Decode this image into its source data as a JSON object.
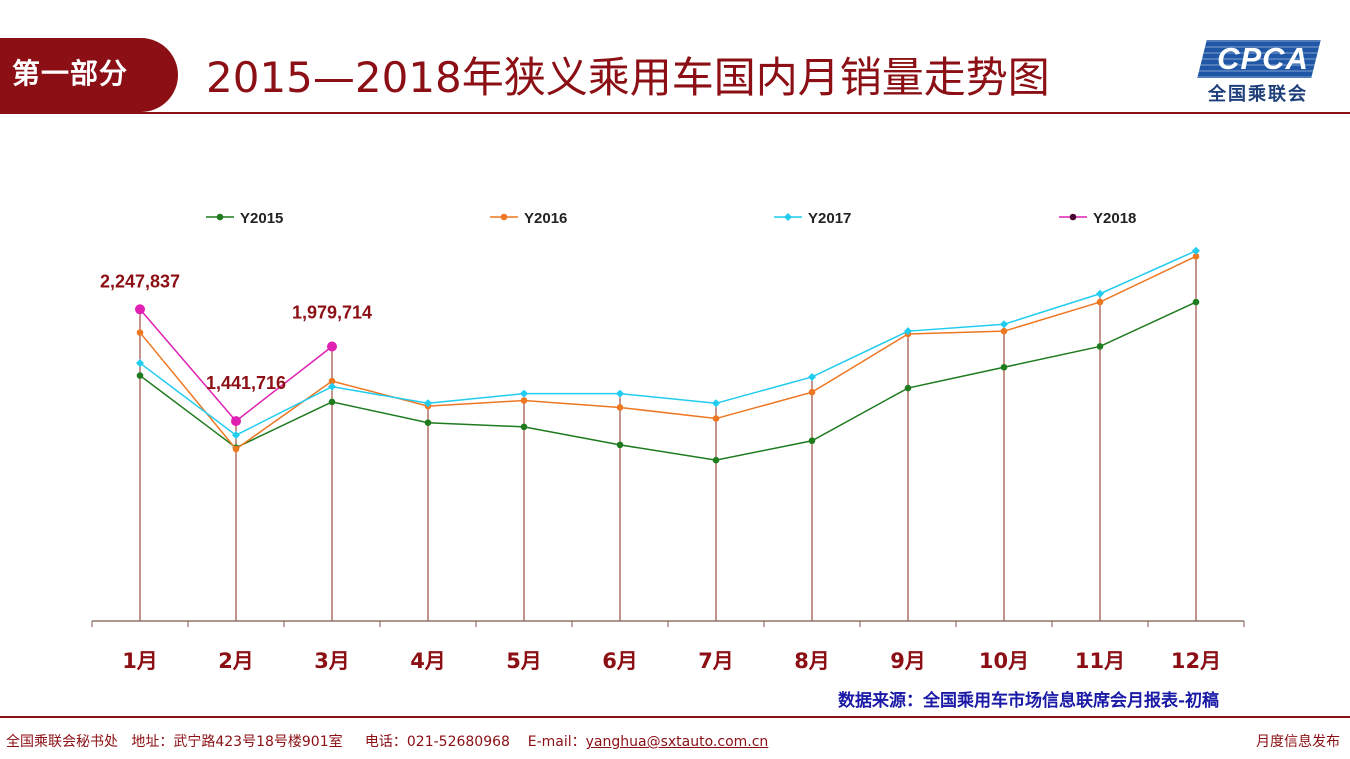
{
  "header": {
    "section_label": "第一部分",
    "title": "2015—2018年狭义乘用车国内月销量走势图",
    "logo_text": "CPCA",
    "logo_subtext": "全国乘联会"
  },
  "chart_data": {
    "type": "line",
    "categories": [
      "1月",
      "2月",
      "3月",
      "4月",
      "5月",
      "6月",
      "7月",
      "8月",
      "9月",
      "10月",
      "11月",
      "12月"
    ],
    "series": [
      {
        "name": "Y2015",
        "color": "#1e7b1e",
        "marker": "circle",
        "values": [
          1770000,
          1250000,
          1580000,
          1430000,
          1400000,
          1270000,
          1160000,
          1300000,
          1680000,
          1830000,
          1980000,
          2300000
        ]
      },
      {
        "name": "Y2016",
        "color": "#ee7722",
        "marker": "circle",
        "values": [
          2080000,
          1240000,
          1730000,
          1550000,
          1590000,
          1540000,
          1460000,
          1650000,
          2070000,
          2090000,
          2300000,
          2630000
        ]
      },
      {
        "name": "Y2017",
        "color": "#22ccee",
        "marker": "diamond",
        "values": [
          1860000,
          1340000,
          1690000,
          1570000,
          1640000,
          1640000,
          1570000,
          1760000,
          2090000,
          2140000,
          2360000,
          2670000
        ]
      },
      {
        "name": "Y2018",
        "color": "#e020b0",
        "marker": "circle",
        "values": [
          2247837,
          1441716,
          1979714,
          null,
          null,
          null,
          null,
          null,
          null,
          null,
          null,
          null
        ]
      }
    ],
    "data_labels": [
      {
        "series": "Y2018",
        "category": "1月",
        "text": "2,247,837"
      },
      {
        "series": "Y2018",
        "category": "2月",
        "text": "1,441,716"
      },
      {
        "series": "Y2018",
        "category": "3月",
        "text": "1,979,714"
      }
    ],
    "ylim": [
      0,
      3000000
    ],
    "drop_lines": true,
    "grid": false,
    "legend_position": "top"
  },
  "source_note": "数据来源：全国乘用车市场信息联席会月报表-初稿",
  "footer": {
    "org": "全国乘联会秘书处",
    "address": "地址：武宁路423号18号楼901室",
    "phone": "电话：021-52680968",
    "email_label": "E-mail：",
    "email": "yanghua@sxtauto.com.cn",
    "right_text": "月度信息发布"
  }
}
